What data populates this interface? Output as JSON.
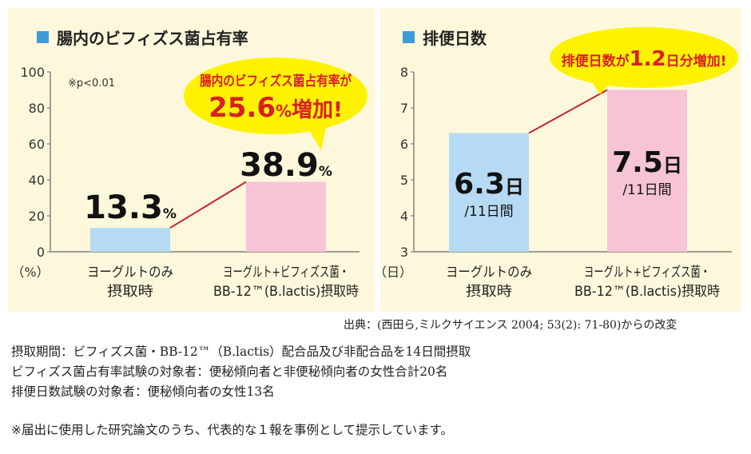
{
  "colors": {
    "panel_bg": "#fdf8dc",
    "bar_blue": "#b7daf4",
    "bar_pink": "#f6c4d6",
    "trend_line": "#c8202f",
    "bubble_fill": "#fff200",
    "bubble_text": "#d81f26",
    "title_square": "#3f9ad8"
  },
  "chart_data": [
    {
      "type": "bar",
      "title": "腸内のビフィズス菌占有率",
      "y_unit": "（%）",
      "ylim": [
        0,
        100
      ],
      "yticks": [
        0,
        20,
        40,
        60,
        80,
        100
      ],
      "significance_note": "※p<0.01",
      "categories": [
        {
          "line1": "ヨーグルトのみ",
          "line2": "摂取時"
        },
        {
          "line1": "ヨーグルト+ビフィズス菌・",
          "line2": "BB-12™(B.lactis)摂取時"
        }
      ],
      "values": [
        13.3,
        38.9
      ],
      "value_labels": [
        {
          "number": "13.3",
          "unit": "%"
        },
        {
          "number": "38.9",
          "unit": "%"
        }
      ],
      "callout": {
        "line1": "腸内のビフィズス菌占有率が",
        "number": "25.6",
        "unit": "%",
        "suffix": "増加!"
      }
    },
    {
      "type": "bar",
      "title": "排便日数",
      "y_unit": "（日）",
      "ylim": [
        3,
        8
      ],
      "yticks": [
        3,
        4,
        5,
        6,
        7,
        8
      ],
      "categories": [
        {
          "line1": "ヨーグルトのみ",
          "line2": "摂取時"
        },
        {
          "line1": "ヨーグルト+ビフィズス菌・",
          "line2": "BB-12™(B.lactis)摂取時"
        }
      ],
      "values": [
        6.3,
        7.5
      ],
      "value_labels": [
        {
          "number": "6.3",
          "unit": "日",
          "sub": "/11日間"
        },
        {
          "number": "7.5",
          "unit": "日",
          "sub": "/11日間"
        }
      ],
      "callout": {
        "prefix": "排便日数が",
        "number": "1.2",
        "suffix": "日分増加!"
      }
    }
  ],
  "source": "出典：(西田ら,ミルクサイエンス 2004; 53(2): 71-80)からの改変",
  "notes": [
    "摂取期間：ビフィズス菌・BB-12™（B.lactis）配合品及び非配合品を14日間摂取",
    "ビフィズス菌占有率試験の対象者：便秘傾向者と非便秘傾向者の女性合計20名",
    "排便日数試験の対象者：便秘傾向者の女性13名"
  ],
  "disclaimer": "※届出に使用した研究論文のうち、代表的な１報を事例として提示しています。"
}
